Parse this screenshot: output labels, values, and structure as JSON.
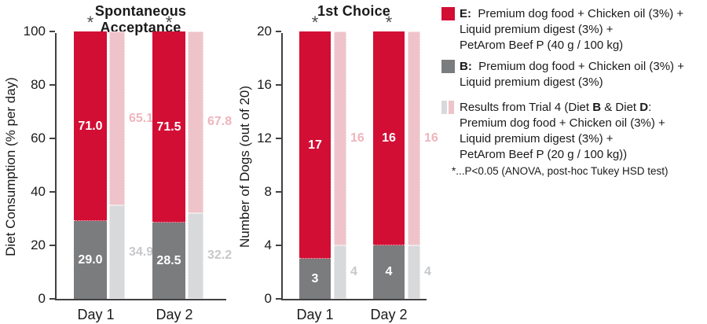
{
  "colors": {
    "red": "#D20E35",
    "pink": "#EEC4CA",
    "gray": "#7B7C7E",
    "light_gray": "#D8D9DB",
    "pink_label": "#EFB5BD",
    "light_gray_label": "#C7C8CA",
    "axis": "#414042",
    "white_label": "#FFFFFF"
  },
  "chart_data": [
    {
      "type": "bar",
      "stacked": true,
      "grid": false,
      "title": "Spontaneous Acceptance",
      "xlabel": "",
      "ylabel": "Diet Consumption (% per day)",
      "ylim": [
        0,
        100
      ],
      "yticks": [
        0,
        20,
        40,
        60,
        80,
        100
      ],
      "categories": [
        "Day 1",
        "Day 2"
      ],
      "series": [
        {
          "name": "Diet B (main bar bottom, gray)",
          "values": [
            29.0,
            28.5
          ],
          "labels": [
            "29.0",
            "28.5"
          ]
        },
        {
          "name": "Diet E (main bar top, red)",
          "values": [
            71.0,
            71.5
          ],
          "labels": [
            "71.0",
            "71.5"
          ]
        },
        {
          "name": "Trial 4 Diet B (side bar bottom, lt gray)",
          "values": [
            34.9,
            32.2
          ],
          "labels": [
            "34.9",
            "32.2"
          ]
        },
        {
          "name": "Trial 4 Diet D (side bar top, pink)",
          "values": [
            65.1,
            67.8
          ],
          "labels": [
            "65.1",
            "67.8"
          ]
        }
      ],
      "significance": [
        "*",
        "*"
      ],
      "legend_position": "right"
    },
    {
      "type": "bar",
      "stacked": true,
      "grid": false,
      "title": "1st Choice",
      "xlabel": "",
      "ylabel": "Number of Dogs (out of 20)",
      "ylim": [
        0,
        20
      ],
      "yticks": [
        0,
        4,
        8,
        12,
        16,
        20
      ],
      "categories": [
        "Day 1",
        "Day 2"
      ],
      "series": [
        {
          "name": "Diet B (main bar bottom, gray)",
          "values": [
            3,
            4
          ],
          "labels": [
            "3",
            "4"
          ]
        },
        {
          "name": "Diet E (main bar top, red)",
          "values": [
            17,
            16
          ],
          "labels": [
            "17",
            "16"
          ]
        },
        {
          "name": "Trial 4 Diet B (side bar bottom, lt gray)",
          "values": [
            4,
            4
          ],
          "labels": [
            "4",
            "4"
          ]
        },
        {
          "name": "Trial 4 Diet D (side bar top, pink)",
          "values": [
            16,
            16
          ],
          "labels": [
            "16",
            "16"
          ]
        }
      ],
      "significance": [
        "*",
        "*"
      ],
      "legend_position": "right"
    }
  ],
  "legend": {
    "items": [
      {
        "swatch": "red",
        "lines": [
          [
            {
              "b": true,
              "t": "E:"
            },
            {
              "t": "  Premium dog food + Chicken oil (3%) +"
            }
          ],
          [
            {
              "t": "Liquid premium digest (3%) +"
            }
          ],
          [
            {
              "t": "PetArom Beef P (40 g / 100 kg)"
            }
          ]
        ]
      },
      {
        "swatch": "gray",
        "lines": [
          [
            {
              "b": true,
              "t": "B:"
            },
            {
              "t": "  Premium dog food + Chicken oil (3%) +"
            }
          ],
          [
            {
              "t": "Liquid premium digest (3%)"
            }
          ]
        ]
      },
      {
        "swatch": "split",
        "lines": [
          [
            {
              "t": "Results from Trial 4 (Diet "
            },
            {
              "b": true,
              "t": "B"
            },
            {
              "t": " & Diet "
            },
            {
              "b": true,
              "t": "D"
            },
            {
              "t": ":"
            }
          ],
          [
            {
              "t": "Premium dog food + Chicken oil (3%) +"
            }
          ],
          [
            {
              "t": "Liquid premium digest (3%) +"
            }
          ],
          [
            {
              "t": "PetArom Beef P (20 g / 100 kg))"
            }
          ]
        ]
      }
    ],
    "footnote": "*...P<0.05 (ANOVA, post-hoc Tukey HSD test)"
  }
}
